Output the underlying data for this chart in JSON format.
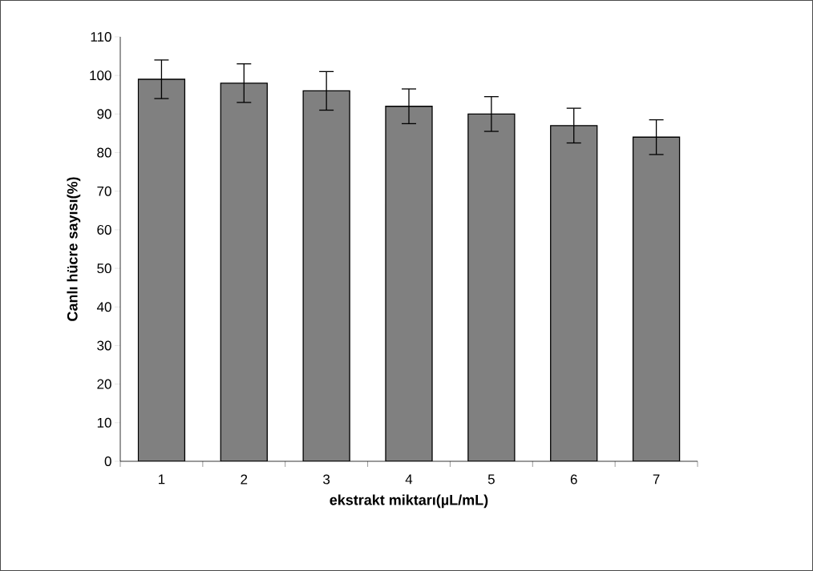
{
  "chart_data": {
    "type": "bar",
    "xlabel": "ekstrakt miktarı(µL/mL)",
    "ylabel": "Canlı hücre sayısı(%)",
    "categories": [
      "1",
      "2",
      "3",
      "4",
      "5",
      "6",
      "7"
    ],
    "values": [
      99,
      98,
      96,
      92,
      90,
      87,
      84
    ],
    "errors": [
      5,
      5,
      5,
      4.5,
      4.5,
      4.5,
      4.5
    ],
    "color": "#808080",
    "grid": false,
    "legend": false,
    "ylim": [
      0,
      110
    ],
    "yticks": [
      0,
      10,
      20,
      30,
      40,
      50,
      60,
      70,
      80,
      90,
      100,
      110
    ]
  }
}
